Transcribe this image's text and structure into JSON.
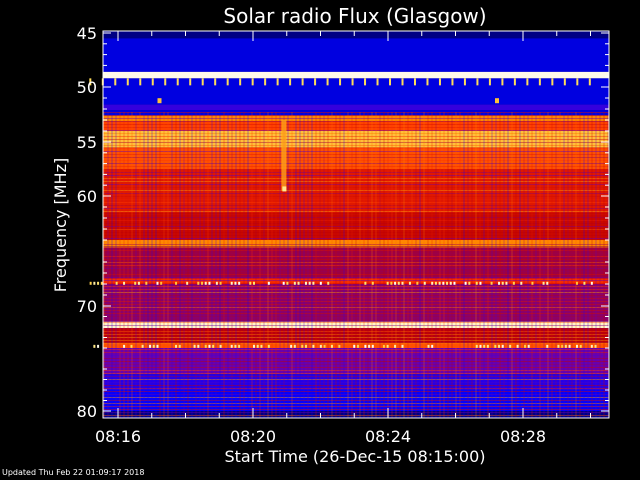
{
  "chart_data": {
    "type": "heatmap",
    "title": "Solar radio Flux (Glasgow)",
    "xlabel": "Start Time (26-Dec-15 08:15:00)",
    "ylabel": "Frequency [MHz]",
    "x_unit": "minutes after 08:15:00",
    "xlim": [
      0,
      15.2
    ],
    "ylim": [
      45,
      80
    ],
    "y_scale": "linear-in-channel (non-uniform)",
    "x_ticks": [
      {
        "value": 1,
        "label": "08:16"
      },
      {
        "value": 5,
        "label": "08:20"
      },
      {
        "value": 9,
        "label": "08:24"
      },
      {
        "value": 13,
        "label": "08:28"
      }
    ],
    "y_ticks": [
      {
        "value": 45,
        "label": "45"
      },
      {
        "value": 50,
        "label": "50"
      },
      {
        "value": 55,
        "label": "55"
      },
      {
        "value": 60,
        "label": "60"
      },
      {
        "value": 70,
        "label": "70"
      },
      {
        "value": 80,
        "label": "80"
      }
    ],
    "colormap": [
      "#000040",
      "#0000ff",
      "#6000c0",
      "#c00000",
      "#ff3000",
      "#ff9000",
      "#ffe060",
      "#ffffff"
    ],
    "bands": [
      {
        "f0": 45.0,
        "f1": 45.5,
        "level": 0.05
      },
      {
        "f0": 45.5,
        "f1": 48.6,
        "level": 0.12
      },
      {
        "f0": 48.6,
        "f1": 49.2,
        "level": 0.98
      },
      {
        "f0": 49.2,
        "f1": 51.6,
        "level": 0.12
      },
      {
        "f0": 51.6,
        "f1": 52.1,
        "level": 0.22
      },
      {
        "f0": 52.1,
        "f1": 52.6,
        "level": 0.12
      },
      {
        "f0": 52.6,
        "f1": 53.1,
        "level": 0.7
      },
      {
        "f0": 53.1,
        "f1": 54.0,
        "level": 0.6
      },
      {
        "f0": 54.0,
        "f1": 55.5,
        "level": 0.8
      },
      {
        "f0": 55.5,
        "f1": 57.5,
        "level": 0.62
      },
      {
        "f0": 57.5,
        "f1": 61.5,
        "level": 0.5
      },
      {
        "f0": 61.5,
        "f1": 64.0,
        "level": 0.45
      },
      {
        "f0": 64.0,
        "f1": 64.6,
        "level": 0.7
      },
      {
        "f0": 64.6,
        "f1": 67.5,
        "level": 0.38
      },
      {
        "f0": 67.5,
        "f1": 68.0,
        "level": 0.55
      },
      {
        "f0": 68.0,
        "f1": 71.5,
        "level": 0.35
      },
      {
        "f0": 71.5,
        "f1": 72.1,
        "level": 0.95
      },
      {
        "f0": 72.1,
        "f1": 73.5,
        "level": 0.42
      },
      {
        "f0": 73.5,
        "f1": 74.0,
        "level": 0.62
      },
      {
        "f0": 74.0,
        "f1": 76.5,
        "level": 0.3
      },
      {
        "f0": 76.5,
        "f1": 78.0,
        "level": 0.2
      },
      {
        "f0": 78.0,
        "f1": 80.0,
        "level": 0.15
      }
    ],
    "features": [
      {
        "type": "vertical-burst",
        "x": 5.9,
        "f0": 53.0,
        "f1": 59.5,
        "level": 0.75
      },
      {
        "type": "spike",
        "x": 2.2,
        "f": 51.2,
        "level": 0.8
      },
      {
        "type": "spike",
        "x": 12.2,
        "f": 51.2,
        "level": 0.8
      },
      {
        "type": "spike",
        "x": 5.9,
        "f": 59.3,
        "level": 0.9
      }
    ],
    "grid": false
  },
  "footer": {
    "updated": "Updated Thu Feb 22 01:09:17 2018"
  }
}
